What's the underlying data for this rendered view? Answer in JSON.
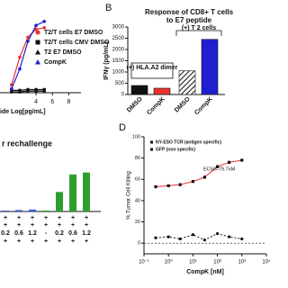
{
  "chart_data": [
    {
      "type": "line",
      "x_label": "ide Log[pg/mL]",
      "x": [
        1,
        2,
        3,
        4,
        5
      ],
      "xlim": [
        -0.2,
        9.5
      ],
      "xticks": [
        4,
        6,
        8
      ],
      "ylim": [
        0,
        100
      ],
      "series": [
        {
          "name": "T2/T cells E7 DMSO",
          "color": "#e8332f",
          "values": [
            10,
            45,
            70,
            80,
            82
          ]
        },
        {
          "name": "T2/T cells CMV DMSO",
          "color": "#111111",
          "values": [
            3,
            3,
            4,
            4,
            4
          ]
        },
        {
          "name": "T2 E7 DMSO",
          "color": "#111111",
          "values": [
            1,
            1,
            2,
            2,
            2
          ]
        },
        {
          "name": "CompK",
          "color": "#1f1fd1",
          "values": [
            5,
            30,
            65,
            85,
            90
          ]
        }
      ]
    },
    {
      "type": "bar",
      "label": "B",
      "title": "Response of CD8+ T cells to E7 peptide",
      "y_label": "IFNγ (pg/mL)",
      "categories": [
        "DMSO",
        "CompK",
        "DMSO",
        "CompK"
      ],
      "values": [
        400,
        280,
        1050,
        2450
      ],
      "colors": [
        "#111111",
        "#e8332f",
        "#ffffff",
        "#1f1fd1"
      ],
      "hatched": [
        false,
        false,
        true,
        false
      ],
      "ylim": [
        0,
        3000
      ],
      "yticks": [
        0,
        500,
        1000,
        1500,
        2000,
        2500,
        3000
      ],
      "annotations": [
        "(+) HLA.A2 dimer",
        "(+) T 2 cells"
      ]
    },
    {
      "type": "bar",
      "title": "r rechallenge",
      "categories": [
        "0.2",
        "0.6",
        "1.2",
        "-",
        "0.2",
        "0.6",
        "1.2"
      ],
      "values": [
        1,
        1.5,
        2,
        1,
        20,
        38,
        40
      ],
      "colors": [
        "#3b5bdb",
        "#3b5bdb",
        "#3b5bdb",
        "#2ca02c",
        "#2ca02c",
        "#2ca02c",
        "#2ca02c"
      ],
      "ylim": [
        0,
        60
      ],
      "row_labels": [
        [
          "+",
          "+",
          "+",
          "+",
          "+",
          "+",
          "+"
        ],
        [
          "+",
          "+",
          "+",
          "+",
          "+",
          "+",
          "+"
        ],
        [
          "+",
          "+",
          "+",
          "+",
          "+",
          "+",
          "+"
        ]
      ]
    },
    {
      "type": "line",
      "label": "D",
      "x_label": "CompK [nM]",
      "y_label": "% Tumor Cell Killing",
      "log_x": true,
      "x": [
        0.3,
        1,
        3,
        10,
        30,
        100,
        300,
        1000
      ],
      "xlim": [
        0.1,
        10000
      ],
      "xticks": [
        {
          "value": 0.1,
          "label": "10⁻¹"
        },
        {
          "value": 1,
          "label": "10⁰"
        },
        {
          "value": 10,
          "label": "10¹"
        },
        {
          "value": 100,
          "label": "10²"
        },
        {
          "value": 1000,
          "label": "10³"
        },
        {
          "value": 10000,
          "label": "10⁴"
        }
      ],
      "ylim": [
        -10,
        100
      ],
      "yticks": [
        0,
        20,
        40,
        60,
        80,
        100
      ],
      "annotation": "EC50=79.7nM",
      "series": [
        {
          "name": "NY-ESO TCR (antigen specific)",
          "color": "#e8332f",
          "values": [
            53,
            54,
            55,
            58,
            62,
            72,
            76,
            78
          ]
        },
        {
          "name": "GFP (non specific)",
          "color": "#111111",
          "values": [
            5,
            6,
            4,
            8,
            3,
            9,
            6,
            4
          ]
        }
      ]
    }
  ]
}
